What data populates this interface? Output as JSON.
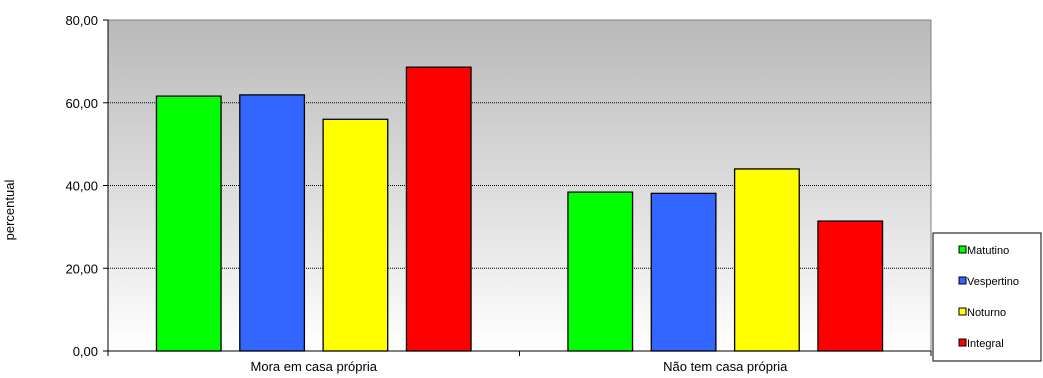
{
  "chart_data": {
    "type": "bar",
    "title": "",
    "xlabel": "",
    "ylabel": "percentual",
    "ylim": [
      0,
      80
    ],
    "yticks": [
      "0,00",
      "20,00",
      "40,00",
      "60,00",
      "80,00"
    ],
    "categories": [
      "Mora em casa própria",
      "Não tem casa própria"
    ],
    "series": [
      {
        "name": "Matutino",
        "color": "#00ff00",
        "values": [
          61.6,
          38.4
        ]
      },
      {
        "name": "Vespertino",
        "color": "#3366ff",
        "values": [
          61.9,
          38.1
        ]
      },
      {
        "name": "Noturno",
        "color": "#ffff00",
        "values": [
          56.0,
          44.0
        ]
      },
      {
        "name": "Integral",
        "color": "#ff0000",
        "values": [
          68.6,
          31.4
        ]
      }
    ],
    "grid": true,
    "legend_position": "right"
  }
}
